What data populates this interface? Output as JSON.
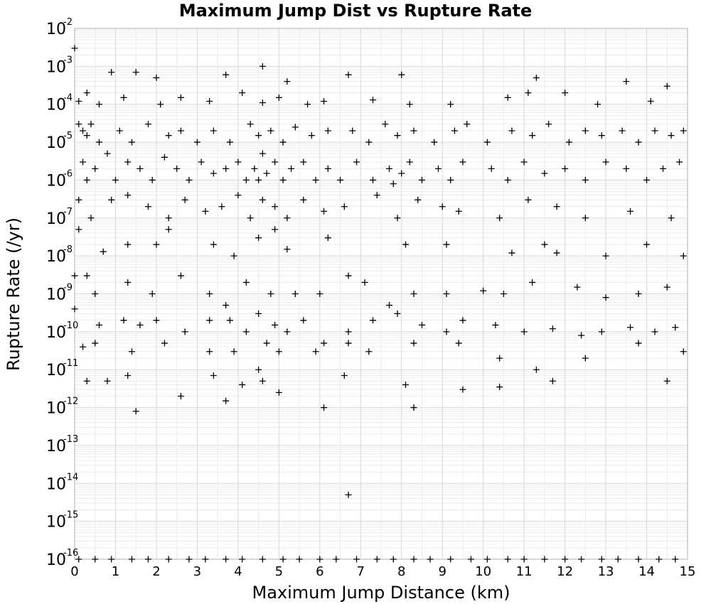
{
  "chart_data": {
    "type": "scatter",
    "title": "Maximum Jump Dist vs Rupture Rate",
    "xlabel": "Maximum Jump Distance (km)",
    "ylabel": "Rupture Rate (/yr)",
    "xlim": [
      0,
      15
    ],
    "ylim": [
      1e-16,
      0.01
    ],
    "yscale": "log",
    "grid": true,
    "marker": "plus",
    "marker_color": "#000000",
    "x_ticks": [
      "0",
      "1",
      "2",
      "3",
      "4",
      "5",
      "6",
      "7",
      "8",
      "9",
      "10",
      "11",
      "12",
      "13",
      "14",
      "15"
    ],
    "y_ticks": [
      {
        "base": "10",
        "exp": "-2"
      },
      {
        "base": "10",
        "exp": "-3"
      },
      {
        "base": "10",
        "exp": "-4"
      },
      {
        "base": "10",
        "exp": "-5"
      },
      {
        "base": "10",
        "exp": "-6"
      },
      {
        "base": "10",
        "exp": "-7"
      },
      {
        "base": "10",
        "exp": "-8"
      },
      {
        "base": "10",
        "exp": "-9"
      },
      {
        "base": "10",
        "exp": "-10"
      },
      {
        "base": "10",
        "exp": "-11"
      },
      {
        "base": "10",
        "exp": "-12"
      },
      {
        "base": "10",
        "exp": "-13"
      },
      {
        "base": "10",
        "exp": "-14"
      },
      {
        "base": "10",
        "exp": "-15"
      },
      {
        "base": "10",
        "exp": "-16"
      }
    ],
    "points": [
      [
        0.0,
        0.003
      ],
      [
        0.9,
        0.0007
      ],
      [
        1.5,
        0.0007
      ],
      [
        2.0,
        0.0005
      ],
      [
        3.7,
        0.0006
      ],
      [
        4.6,
        0.001
      ],
      [
        5.2,
        0.0004
      ],
      [
        6.7,
        0.0006
      ],
      [
        8.0,
        0.0006
      ],
      [
        11.3,
        0.0005
      ],
      [
        13.5,
        0.0004
      ],
      [
        14.5,
        0.0003
      ],
      [
        0.1,
        0.00012
      ],
      [
        0.3,
        0.0002
      ],
      [
        0.6,
        0.0001
      ],
      [
        1.2,
        0.00015
      ],
      [
        2.1,
        0.0001
      ],
      [
        2.6,
        0.00015
      ],
      [
        3.3,
        0.00012
      ],
      [
        4.1,
        0.0002
      ],
      [
        4.6,
        0.00011
      ],
      [
        5.0,
        0.00015
      ],
      [
        5.7,
        0.0001
      ],
      [
        6.1,
        0.00012
      ],
      [
        7.3,
        0.00013
      ],
      [
        8.2,
        0.0001
      ],
      [
        9.2,
        0.0001
      ],
      [
        10.6,
        0.00015
      ],
      [
        11.1,
        0.0002
      ],
      [
        12.0,
        0.0002
      ],
      [
        12.8,
        0.0001
      ],
      [
        14.1,
        0.00012
      ],
      [
        0.1,
        3e-05
      ],
      [
        0.2,
        2e-05
      ],
      [
        0.3,
        1.5e-05
      ],
      [
        0.4,
        3e-05
      ],
      [
        0.6,
        1e-05
      ],
      [
        1.1,
        2e-05
      ],
      [
        1.4,
        1e-05
      ],
      [
        1.8,
        3e-05
      ],
      [
        2.3,
        1.5e-05
      ],
      [
        2.6,
        2e-05
      ],
      [
        3.0,
        1e-05
      ],
      [
        3.4,
        2e-05
      ],
      [
        3.8,
        1e-05
      ],
      [
        4.3,
        3e-05
      ],
      [
        4.5,
        1.5e-05
      ],
      [
        4.8,
        2e-05
      ],
      [
        5.1,
        1e-05
      ],
      [
        5.4,
        2.5e-05
      ],
      [
        5.8,
        1.5e-05
      ],
      [
        6.2,
        2e-05
      ],
      [
        6.8,
        2e-05
      ],
      [
        7.2,
        1e-05
      ],
      [
        7.6,
        3e-05
      ],
      [
        7.9,
        1.5e-05
      ],
      [
        8.3,
        2e-05
      ],
      [
        8.8,
        1e-05
      ],
      [
        9.3,
        2e-05
      ],
      [
        9.6,
        3e-05
      ],
      [
        10.1,
        1e-05
      ],
      [
        10.7,
        2e-05
      ],
      [
        11.2,
        1.5e-05
      ],
      [
        11.6,
        3e-05
      ],
      [
        12.1,
        1e-05
      ],
      [
        12.5,
        2e-05
      ],
      [
        12.9,
        1.5e-05
      ],
      [
        13.4,
        2e-05
      ],
      [
        13.8,
        1e-05
      ],
      [
        14.2,
        2e-05
      ],
      [
        14.6,
        1.5e-05
      ],
      [
        14.9,
        2e-05
      ],
      [
        0.2,
        3e-06
      ],
      [
        0.3,
        1e-06
      ],
      [
        0.5,
        2e-06
      ],
      [
        0.8,
        5e-06
      ],
      [
        1.0,
        1e-06
      ],
      [
        1.3,
        3e-06
      ],
      [
        1.6,
        2e-06
      ],
      [
        1.9,
        1e-06
      ],
      [
        2.2,
        4e-06
      ],
      [
        2.5,
        2e-06
      ],
      [
        2.8,
        1e-06
      ],
      [
        3.1,
        3e-06
      ],
      [
        3.4,
        1.5e-06
      ],
      [
        3.7,
        2e-06
      ],
      [
        4.0,
        3e-06
      ],
      [
        4.2,
        1e-06
      ],
      [
        4.4,
        2e-06
      ],
      [
        4.5,
        1e-06
      ],
      [
        4.6,
        5e-06
      ],
      [
        4.7,
        1.5e-06
      ],
      [
        4.9,
        3e-06
      ],
      [
        5.1,
        1e-06
      ],
      [
        5.3,
        2e-06
      ],
      [
        5.6,
        3e-06
      ],
      [
        5.9,
        1e-06
      ],
      [
        6.2,
        2e-06
      ],
      [
        6.5,
        1e-06
      ],
      [
        6.9,
        3e-06
      ],
      [
        7.3,
        1e-06
      ],
      [
        7.7,
        2e-06
      ],
      [
        7.8,
        8e-07
      ],
      [
        8.0,
        1.5e-06
      ],
      [
        8.2,
        3e-06
      ],
      [
        8.5,
        1e-06
      ],
      [
        8.9,
        2e-06
      ],
      [
        9.2,
        1e-06
      ],
      [
        9.5,
        3e-06
      ],
      [
        10.2,
        2e-06
      ],
      [
        10.6,
        1e-06
      ],
      [
        11.0,
        3e-06
      ],
      [
        11.5,
        1.5e-06
      ],
      [
        12.0,
        2e-06
      ],
      [
        12.5,
        1e-06
      ],
      [
        13.0,
        3e-06
      ],
      [
        13.5,
        2e-06
      ],
      [
        14.0,
        1e-06
      ],
      [
        14.4,
        2e-06
      ],
      [
        14.8,
        3e-06
      ],
      [
        0.1,
        3e-07
      ],
      [
        0.4,
        1e-07
      ],
      [
        0.9,
        3e-07
      ],
      [
        1.3,
        4e-07
      ],
      [
        1.8,
        2e-07
      ],
      [
        2.3,
        1e-07
      ],
      [
        2.7,
        3e-07
      ],
      [
        3.2,
        1.5e-07
      ],
      [
        3.6,
        2e-07
      ],
      [
        4.0,
        4e-07
      ],
      [
        4.3,
        1e-07
      ],
      [
        4.6,
        3e-07
      ],
      [
        4.9,
        2e-07
      ],
      [
        5.2,
        1e-07
      ],
      [
        5.6,
        3e-07
      ],
      [
        6.1,
        1.5e-07
      ],
      [
        6.6,
        2e-07
      ],
      [
        7.4,
        4e-07
      ],
      [
        7.9,
        1e-07
      ],
      [
        8.4,
        3e-07
      ],
      [
        9.0,
        2e-07
      ],
      [
        9.4,
        1.5e-07
      ],
      [
        10.4,
        1e-07
      ],
      [
        11.1,
        3e-07
      ],
      [
        11.8,
        2e-07
      ],
      [
        12.5,
        1e-07
      ],
      [
        13.6,
        1.5e-07
      ],
      [
        14.6,
        1e-07
      ],
      [
        0.1,
        5e-08
      ],
      [
        0.7,
        1.3e-08
      ],
      [
        1.3,
        2e-08
      ],
      [
        2.0,
        2e-08
      ],
      [
        2.3,
        5e-08
      ],
      [
        3.4,
        2e-08
      ],
      [
        3.9,
        1e-08
      ],
      [
        4.5,
        3e-08
      ],
      [
        4.9,
        5e-08
      ],
      [
        5.2,
        1.5e-08
      ],
      [
        6.2,
        3e-08
      ],
      [
        8.1,
        2e-08
      ],
      [
        9.1,
        2e-08
      ],
      [
        10.7,
        1.2e-08
      ],
      [
        11.5,
        2e-08
      ],
      [
        11.8,
        1.2e-08
      ],
      [
        13.0,
        1e-08
      ],
      [
        14.0,
        2e-08
      ],
      [
        14.9,
        1e-08
      ],
      [
        0.0,
        3e-09
      ],
      [
        0.3,
        3e-09
      ],
      [
        0.5,
        1e-09
      ],
      [
        1.3,
        2e-09
      ],
      [
        1.9,
        1e-09
      ],
      [
        2.6,
        3e-09
      ],
      [
        3.3,
        1e-09
      ],
      [
        3.7,
        5e-10
      ],
      [
        4.2,
        2e-09
      ],
      [
        4.8,
        1e-09
      ],
      [
        5.4,
        1e-09
      ],
      [
        6.0,
        1e-09
      ],
      [
        6.7,
        3e-09
      ],
      [
        7.1,
        2e-09
      ],
      [
        7.7,
        5e-10
      ],
      [
        8.3,
        1e-09
      ],
      [
        9.1,
        1e-09
      ],
      [
        10.0,
        1.2e-09
      ],
      [
        10.5,
        1e-09
      ],
      [
        11.2,
        2e-09
      ],
      [
        12.3,
        1.5e-09
      ],
      [
        13.0,
        8e-10
      ],
      [
        13.8,
        1e-09
      ],
      [
        14.5,
        1.5e-09
      ],
      [
        0.0,
        4e-10
      ],
      [
        0.6,
        1.5e-10
      ],
      [
        1.2,
        2e-10
      ],
      [
        1.6,
        1.5e-10
      ],
      [
        2.0,
        2e-10
      ],
      [
        2.7,
        1e-10
      ],
      [
        3.3,
        2e-10
      ],
      [
        3.8,
        2e-10
      ],
      [
        4.2,
        1e-10
      ],
      [
        4.5,
        3e-10
      ],
      [
        4.7,
        5e-11
      ],
      [
        4.9,
        1.5e-10
      ],
      [
        5.2,
        1e-10
      ],
      [
        5.6,
        2e-10
      ],
      [
        6.1,
        5e-11
      ],
      [
        6.7,
        1e-10
      ],
      [
        7.3,
        2e-10
      ],
      [
        7.9,
        3e-10
      ],
      [
        8.5,
        1.5e-10
      ],
      [
        9.1,
        1e-10
      ],
      [
        9.5,
        2e-10
      ],
      [
        10.3,
        1.5e-10
      ],
      [
        11.0,
        1e-10
      ],
      [
        11.7,
        1.2e-10
      ],
      [
        12.4,
        8e-11
      ],
      [
        12.9,
        1e-10
      ],
      [
        13.6,
        1.3e-10
      ],
      [
        14.2,
        1e-10
      ],
      [
        14.7,
        1.3e-10
      ],
      [
        0.2,
        4e-11
      ],
      [
        0.5,
        5e-11
      ],
      [
        1.4,
        3e-11
      ],
      [
        2.2,
        5e-11
      ],
      [
        3.3,
        3e-11
      ],
      [
        3.9,
        3e-11
      ],
      [
        4.5,
        1e-11
      ],
      [
        5.0,
        3e-11
      ],
      [
        5.9,
        3e-11
      ],
      [
        6.7,
        5e-11
      ],
      [
        7.2,
        3e-11
      ],
      [
        8.3,
        5e-11
      ],
      [
        9.4,
        5e-11
      ],
      [
        10.4,
        2e-11
      ],
      [
        11.3,
        1e-11
      ],
      [
        12.5,
        2e-11
      ],
      [
        13.8,
        5e-11
      ],
      [
        14.9,
        3e-11
      ],
      [
        0.3,
        5e-12
      ],
      [
        0.8,
        5e-12
      ],
      [
        1.3,
        7e-12
      ],
      [
        2.6,
        2e-12
      ],
      [
        3.4,
        7e-12
      ],
      [
        4.1,
        4e-12
      ],
      [
        4.6,
        5e-12
      ],
      [
        5.0,
        2.5e-12
      ],
      [
        6.6,
        7e-12
      ],
      [
        8.1,
        4e-12
      ],
      [
        9.5,
        3e-12
      ],
      [
        10.4,
        3.5e-12
      ],
      [
        11.7,
        5e-12
      ],
      [
        14.5,
        5e-12
      ],
      [
        1.5,
        8e-13
      ],
      [
        3.7,
        1.5e-12
      ],
      [
        6.1,
        1e-12
      ],
      [
        8.3,
        1e-12
      ],
      [
        6.7,
        5e-15
      ]
    ],
    "baseline_points": [
      0.1,
      0.5,
      0.9,
      1.4,
      1.8,
      2.3,
      2.8,
      3.2,
      3.7,
      4.1,
      4.6,
      5.1,
      5.5,
      6.0,
      6.4,
      6.9,
      7.4,
      7.8,
      8.3,
      8.7,
      9.2,
      9.7,
      10.1,
      10.6,
      11.0,
      11.5,
      12.0,
      12.4,
      12.9,
      13.3,
      13.8,
      14.3,
      14.7
    ]
  }
}
